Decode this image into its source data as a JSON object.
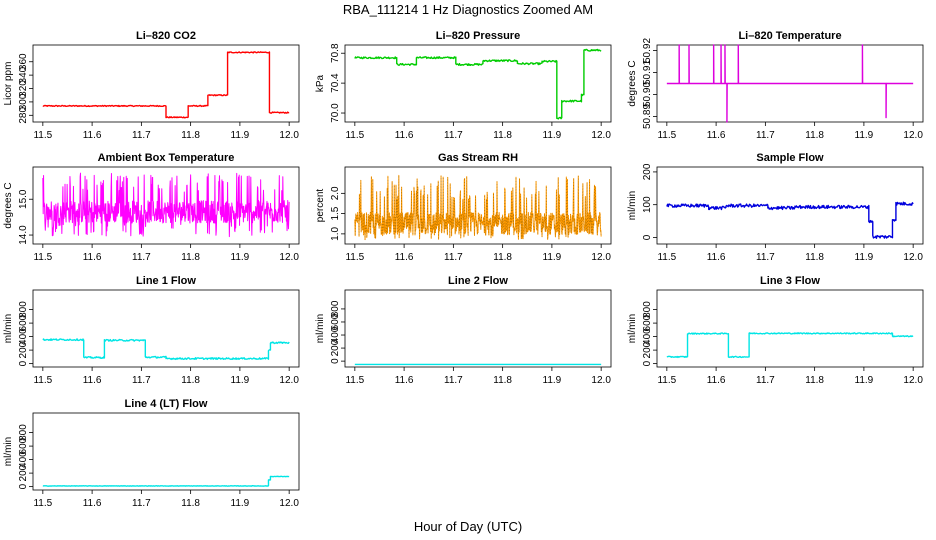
{
  "figure": {
    "title": "RBA_111214  1 Hz Diagnostics Zoomed AM",
    "xlabel": "Hour of Day (UTC)"
  },
  "chart_data": [
    {
      "type": "line",
      "title": "Li–820 CO2",
      "ylabel": "Licor ppm",
      "color": "#ff0000",
      "xlim": [
        11.5,
        12.0
      ],
      "ylim": [
        270,
        385
      ],
      "xticks": [
        "11.5",
        "11.6",
        "11.7",
        "11.8",
        "11.9",
        "12.0"
      ],
      "yticks": [
        {
          "value": 280,
          "label": "280"
        },
        {
          "value": 300,
          "label": "300"
        },
        {
          "value": 320,
          "label": "320"
        },
        {
          "value": 340,
          "label": "340"
        },
        {
          "value": 360,
          "label": "360"
        }
      ],
      "noise": 0.8,
      "segments": [
        {
          "x": [
            11.5,
            11.75
          ],
          "y": 294
        },
        {
          "x": [
            11.75,
            11.795
          ],
          "y": 277
        },
        {
          "x": [
            11.795,
            11.835
          ],
          "y": 294
        },
        {
          "x": [
            11.835,
            11.875
          ],
          "y": 310
        },
        {
          "x": [
            11.875,
            11.96
          ],
          "y": 374
        },
        {
          "x": [
            11.96,
            12.0
          ],
          "y": 284
        }
      ]
    },
    {
      "type": "line",
      "title": "Li–820 Pressure",
      "ylabel": "kPa",
      "color": "#00cc00",
      "xlim": [
        11.5,
        12.0
      ],
      "ylim": [
        69.88,
        70.91
      ],
      "xticks": [
        "11.5",
        "11.6",
        "11.7",
        "11.8",
        "11.9",
        "12.0"
      ],
      "yticks": [
        {
          "value": 70.0,
          "label": "70.0"
        },
        {
          "value": 70.4,
          "label": "70.4"
        },
        {
          "value": 70.8,
          "label": "70.8"
        }
      ],
      "noise": 0.012,
      "segments": [
        {
          "x": [
            11.5,
            11.585
          ],
          "y": 70.74
        },
        {
          "x": [
            11.585,
            11.625
          ],
          "y": 70.65
        },
        {
          "x": [
            11.625,
            11.705
          ],
          "y": 70.74
        },
        {
          "x": [
            11.705,
            11.76
          ],
          "y": 70.65
        },
        {
          "x": [
            11.76,
            11.83
          ],
          "y": 70.7
        },
        {
          "x": [
            11.83,
            11.88
          ],
          "y": 70.66
        },
        {
          "x": [
            11.88,
            11.91
          ],
          "y": 70.69
        },
        {
          "x": [
            11.91,
            11.92
          ],
          "y": 69.93
        },
        {
          "x": [
            11.92,
            11.96
          ],
          "y": 70.16
        },
        {
          "x": [
            11.96,
            11.965
          ],
          "y": 70.24
        },
        {
          "x": [
            11.965,
            12.0
          ],
          "y": 70.84
        }
      ]
    },
    {
      "type": "line",
      "title": "Li–820 Temperature",
      "ylabel": "degrees C",
      "color": "#dd00dd",
      "xlim": [
        11.5,
        12.0
      ],
      "ylim": [
        50.8875,
        50.9225
      ],
      "xticks": [
        "11.5",
        "11.6",
        "11.7",
        "11.8",
        "11.9",
        "12.0"
      ],
      "yticks": [
        {
          "value": 50.89,
          "label": "50.89"
        },
        {
          "value": 50.9,
          "label": "50.90"
        },
        {
          "value": 50.91,
          "label": "50.91"
        },
        {
          "value": 50.92,
          "label": "50.92"
        }
      ],
      "baseline": 50.905,
      "spikes": [
        {
          "x": 11.525,
          "y": 50.9225
        },
        {
          "x": 11.545,
          "y": 50.9225
        },
        {
          "x": 11.595,
          "y": 50.9225
        },
        {
          "x": 11.61,
          "y": 50.9225
        },
        {
          "x": 11.618,
          "y": 50.9225
        },
        {
          "x": 11.622,
          "y": 50.8875
        },
        {
          "x": 11.645,
          "y": 50.9225
        },
        {
          "x": 11.897,
          "y": 50.9225
        },
        {
          "x": 11.945,
          "y": 50.8895
        }
      ]
    },
    {
      "type": "line",
      "title": "Ambient Box Temperature",
      "ylabel": "degrees C",
      "color": "#ff00ff",
      "xlim": [
        11.5,
        12.0
      ],
      "ylim": [
        13.75,
        15.9
      ],
      "xticks": [
        "11.5",
        "11.6",
        "11.7",
        "11.8",
        "11.9",
        "12.0"
      ],
      "yticks": [
        {
          "value": 14.0,
          "label": "14.0"
        },
        {
          "value": 15.0,
          "label": "15.0"
        }
      ],
      "noise_band": {
        "center": 14.65,
        "low": 13.95,
        "high": 15.75
      }
    },
    {
      "type": "line",
      "title": "Gas Stream RH",
      "ylabel": "percent",
      "color": "#ff9900",
      "marker_color": "#996600",
      "xlim": [
        11.5,
        12.0
      ],
      "ylim": [
        0.75,
        2.65
      ],
      "xticks": [
        "11.5",
        "11.6",
        "11.7",
        "11.8",
        "11.9",
        "12.0"
      ],
      "yticks": [
        {
          "value": 1.0,
          "label": "1.0"
        },
        {
          "value": 1.5,
          "label": "1.5"
        },
        {
          "value": 2.0,
          "label": "2.0"
        }
      ],
      "noise_band": {
        "center": 1.25,
        "low": 0.85,
        "high": 2.45
      }
    },
    {
      "type": "line",
      "title": "Sample Flow",
      "ylabel": "ml/min",
      "color": "#0000dd",
      "xlim": [
        11.5,
        12.0
      ],
      "ylim": [
        -20,
        215
      ],
      "xticks": [
        "11.5",
        "11.6",
        "11.7",
        "11.8",
        "11.9",
        "12.0"
      ],
      "yticks": [
        {
          "value": 0,
          "label": "0"
        },
        {
          "value": 100,
          "label": "100"
        },
        {
          "value": 200,
          "label": "200"
        }
      ],
      "noise": 5,
      "segments": [
        {
          "x": [
            11.5,
            11.585
          ],
          "y": 97
        },
        {
          "x": [
            11.585,
            11.62
          ],
          "y": 90
        },
        {
          "x": [
            11.62,
            11.705
          ],
          "y": 97
        },
        {
          "x": [
            11.705,
            11.76
          ],
          "y": 90
        },
        {
          "x": [
            11.76,
            11.91
          ],
          "y": 93
        },
        {
          "x": [
            11.91,
            11.918
          ],
          "y": 50
        },
        {
          "x": [
            11.918,
            11.958
          ],
          "y": 2
        },
        {
          "x": [
            11.958,
            11.965
          ],
          "y": 55
        },
        {
          "x": [
            11.965,
            12.0
          ],
          "y": 103
        }
      ]
    },
    {
      "type": "line",
      "title": "Line 1 Flow",
      "ylabel": "ml/min",
      "color": "#00e5e5",
      "xlim": [
        11.5,
        12.0
      ],
      "ylim": [
        -50,
        1090
      ],
      "xticks": [
        "11.5",
        "11.6",
        "11.7",
        "11.8",
        "11.9",
        "12.0"
      ],
      "yticks": [
        {
          "value": 0,
          "label": "0"
        },
        {
          "value": 200,
          "label": "200"
        },
        {
          "value": 400,
          "label": "400"
        },
        {
          "value": 600,
          "label": "600"
        },
        {
          "value": 800,
          "label": "800"
        }
      ],
      "noise": 12,
      "segments": [
        {
          "x": [
            11.5,
            11.583
          ],
          "y": 355
        },
        {
          "x": [
            11.583,
            11.625
          ],
          "y": 90
        },
        {
          "x": [
            11.625,
            11.708
          ],
          "y": 345
        },
        {
          "x": [
            11.708,
            11.75
          ],
          "y": 95
        },
        {
          "x": [
            11.75,
            11.958
          ],
          "y": 75
        },
        {
          "x": [
            11.958,
            11.962
          ],
          "y": 200
        },
        {
          "x": [
            11.962,
            12.0
          ],
          "y": 310
        }
      ]
    },
    {
      "type": "line",
      "title": "Line 2 Flow",
      "ylabel": "ml/min",
      "color": "#00e5e5",
      "xlim": [
        11.5,
        12.0
      ],
      "ylim": [
        -90,
        1090
      ],
      "xticks": [
        "11.5",
        "11.6",
        "11.7",
        "11.8",
        "11.9",
        "12.0"
      ],
      "yticks": [
        {
          "value": 0,
          "label": "0"
        },
        {
          "value": 200,
          "label": "200"
        },
        {
          "value": 400,
          "label": "400"
        },
        {
          "value": 600,
          "label": "600"
        },
        {
          "value": 800,
          "label": "800"
        }
      ],
      "noise": 0,
      "segments": [
        {
          "x": [
            11.5,
            12.0
          ],
          "y": -50
        }
      ]
    },
    {
      "type": "line",
      "title": "Line 3 Flow",
      "ylabel": "ml/min",
      "color": "#00e5e5",
      "xlim": [
        11.5,
        12.0
      ],
      "ylim": [
        -50,
        1090
      ],
      "xticks": [
        "11.5",
        "11.6",
        "11.7",
        "11.8",
        "11.9",
        "12.0"
      ],
      "yticks": [
        {
          "value": 0,
          "label": "0"
        },
        {
          "value": 200,
          "label": "200"
        },
        {
          "value": 400,
          "label": "400"
        },
        {
          "value": 600,
          "label": "600"
        },
        {
          "value": 800,
          "label": "800"
        }
      ],
      "noise": 8,
      "segments": [
        {
          "x": [
            11.5,
            11.542
          ],
          "y": 100
        },
        {
          "x": [
            11.542,
            11.625
          ],
          "y": 445
        },
        {
          "x": [
            11.625,
            11.667
          ],
          "y": 100
        },
        {
          "x": [
            11.667,
            11.958
          ],
          "y": 448
        },
        {
          "x": [
            11.958,
            12.0
          ],
          "y": 405
        }
      ]
    },
    {
      "type": "line",
      "title": "Line 4 (LT) Flow",
      "ylabel": "ml/min",
      "color": "#00e5e5",
      "xlim": [
        11.5,
        12.0
      ],
      "ylim": [
        -50,
        1090
      ],
      "xticks": [
        "11.5",
        "11.6",
        "11.7",
        "11.8",
        "11.9",
        "12.0"
      ],
      "yticks": [
        {
          "value": 0,
          "label": "0"
        },
        {
          "value": 200,
          "label": "200"
        },
        {
          "value": 400,
          "label": "400"
        },
        {
          "value": 600,
          "label": "600"
        },
        {
          "value": 800,
          "label": "800"
        }
      ],
      "noise": 3,
      "segments": [
        {
          "x": [
            11.5,
            11.958
          ],
          "y": 10
        },
        {
          "x": [
            11.958,
            11.962
          ],
          "y": 100
        },
        {
          "x": [
            11.962,
            12.0
          ],
          "y": 150
        }
      ]
    }
  ]
}
